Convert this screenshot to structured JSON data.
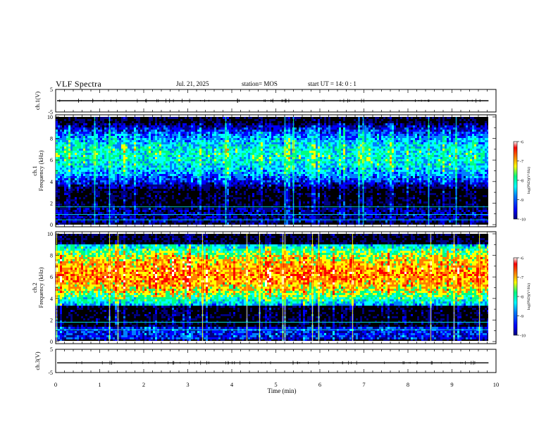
{
  "header": {
    "title": "VLF Spectra",
    "date": "Jul. 21, 2025",
    "station": "station= MOS",
    "start": "start UT =  14: 0  : 1"
  },
  "chart_data": [
    {
      "type": "line",
      "name": "ch1-waveform",
      "ylabel": "ch.1(V)",
      "ylim": [
        -5,
        5
      ],
      "yticks": [
        "5",
        "-5"
      ],
      "xlim": [
        0,
        10
      ],
      "approx_level": 0
    },
    {
      "type": "heatmap",
      "name": "ch1-spectrogram",
      "ylabel": "ch.1\nFrequency (kHz)",
      "ylabel_top": "ch.1",
      "ylabel_bottom": "Frequency (kHz)",
      "ylim": [
        0,
        10
      ],
      "yticks": [
        "0",
        "2",
        "4",
        "6",
        "8",
        "10"
      ],
      "xlim": [
        0,
        9.83
      ],
      "colorbar": {
        "label": "log(PSD)(V²/Hz)",
        "range": [
          -10,
          -6
        ],
        "ticks": [
          "-6",
          "-7",
          "-8",
          "-9",
          "-10"
        ]
      },
      "bands": [
        {
          "from_khz": 3.5,
          "to_khz": 9.5,
          "peak_log_psd": -8.2
        },
        {
          "from_khz": 0.3,
          "to_khz": 1.7,
          "peak_log_psd": -9.2
        }
      ],
      "lines_khz": [
        0.45,
        0.95,
        1.65
      ]
    },
    {
      "type": "heatmap",
      "name": "ch2-spectrogram",
      "ylabel": "ch.2\nFrequency (kHz)",
      "ylabel_top": "ch.2",
      "ylabel_bottom": "Frequency (kHz)",
      "ylim": [
        0,
        10
      ],
      "yticks": [
        "0",
        "2",
        "4",
        "6",
        "8",
        "10"
      ],
      "xlim": [
        0,
        9.83
      ],
      "colorbar": {
        "label": "log(PSD)(V²/Hz)",
        "range": [
          -10,
          -6
        ],
        "ticks": [
          "-6",
          "-7",
          "-8",
          "-9",
          "-10"
        ]
      },
      "bands": [
        {
          "from_khz": 3.5,
          "to_khz": 9.2,
          "peak_log_psd": -7.0
        },
        {
          "from_khz": 0.2,
          "to_khz": 1.4,
          "peak_log_psd": -8.8
        }
      ],
      "lines_khz": [
        1.1,
        1.8
      ]
    },
    {
      "type": "line",
      "name": "ch3-waveform",
      "ylabel": "ch.3(V)",
      "ylim": [
        -5,
        5
      ],
      "yticks": [
        "5",
        "-5"
      ],
      "xlim": [
        0,
        10
      ],
      "approx_level": -1
    }
  ],
  "xaxis": {
    "label": "Time (min)",
    "range": [
      0,
      10
    ],
    "ticks": [
      "0",
      "1",
      "2",
      "3",
      "4",
      "5",
      "6",
      "7",
      "8",
      "9",
      "10"
    ]
  },
  "colormap": [
    "#000080",
    "#0000ff",
    "#0080ff",
    "#00ffff",
    "#00ff80",
    "#ffff00",
    "#ff8000",
    "#ff0000",
    "#ffffff"
  ]
}
